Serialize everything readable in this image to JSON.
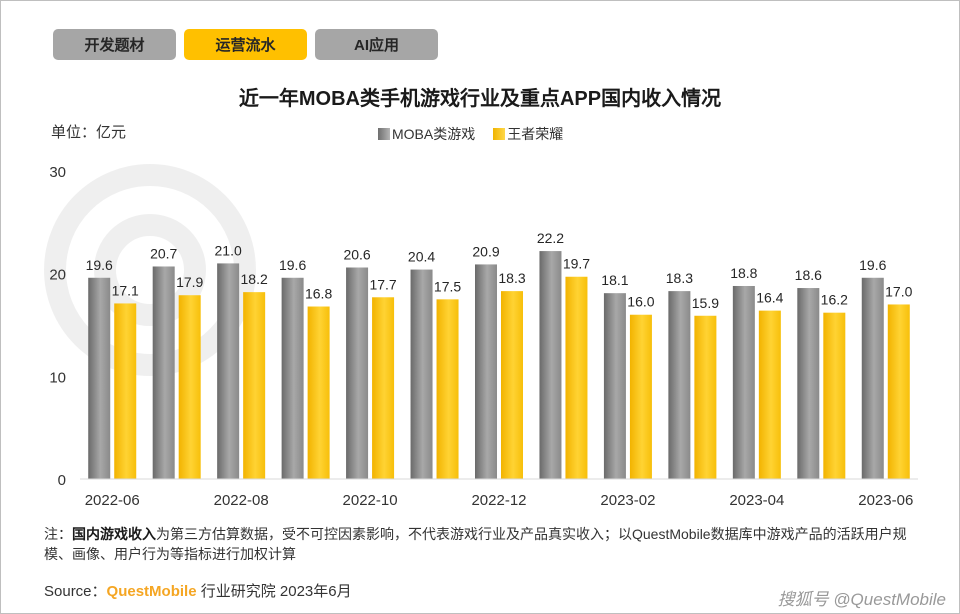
{
  "tabs": [
    {
      "label": "开发题材",
      "active": false
    },
    {
      "label": "运营流水",
      "active": true
    },
    {
      "label": "AI应用",
      "active": false
    }
  ],
  "unit_label": "单位：亿元",
  "note": {
    "prefix": "注：",
    "bold": "国内游戏收入",
    "text": "为第三方估算数据，受不可控因素影响，不代表游戏行业及产品真实收入；以QuestMobile数据库中游戏产品的活跃用户规模、画像、用户行为等指标进行加权计算"
  },
  "source": {
    "prefix": "Source：",
    "brand": "QuestMobile",
    "suffix": " 行业研究院 2023年6月"
  },
  "bottom_watermark": "搜狐号 @QuestMobile",
  "colors": {
    "accent": "#ffc000",
    "grey_bar": "#8c8c8c",
    "gold_bar": "#ffc000"
  },
  "chart_data": {
    "type": "bar",
    "title": "近一年MOBA类手机游戏行业及重点APP国内收入情况",
    "ylabel": "",
    "xlabel": "",
    "ylim": [
      0,
      30
    ],
    "yticks": [
      0,
      10,
      20,
      30
    ],
    "legend_position": "top-center",
    "grid": false,
    "categories": [
      "2022-06",
      "2022-07",
      "2022-08",
      "2022-09",
      "2022-10",
      "2022-11",
      "2022-12",
      "2023-01",
      "2023-02",
      "2023-03",
      "2023-04",
      "2023-05",
      "2023-06"
    ],
    "xtick_labels": [
      "2022-06",
      "",
      "2022-08",
      "",
      "2022-10",
      "",
      "2022-12",
      "",
      "2023-02",
      "",
      "2023-04",
      "",
      "2023-06"
    ],
    "series": [
      {
        "name": "MOBA类游戏",
        "color": "#8c8c8c",
        "values": [
          19.6,
          20.7,
          21.0,
          19.6,
          20.6,
          20.4,
          20.9,
          22.2,
          18.1,
          18.3,
          18.8,
          18.6,
          19.6
        ]
      },
      {
        "name": "王者荣耀",
        "color": "#ffc000",
        "values": [
          17.1,
          17.9,
          18.2,
          16.8,
          17.7,
          17.5,
          18.3,
          19.7,
          16.0,
          15.9,
          16.4,
          16.2,
          17.0
        ]
      }
    ]
  }
}
